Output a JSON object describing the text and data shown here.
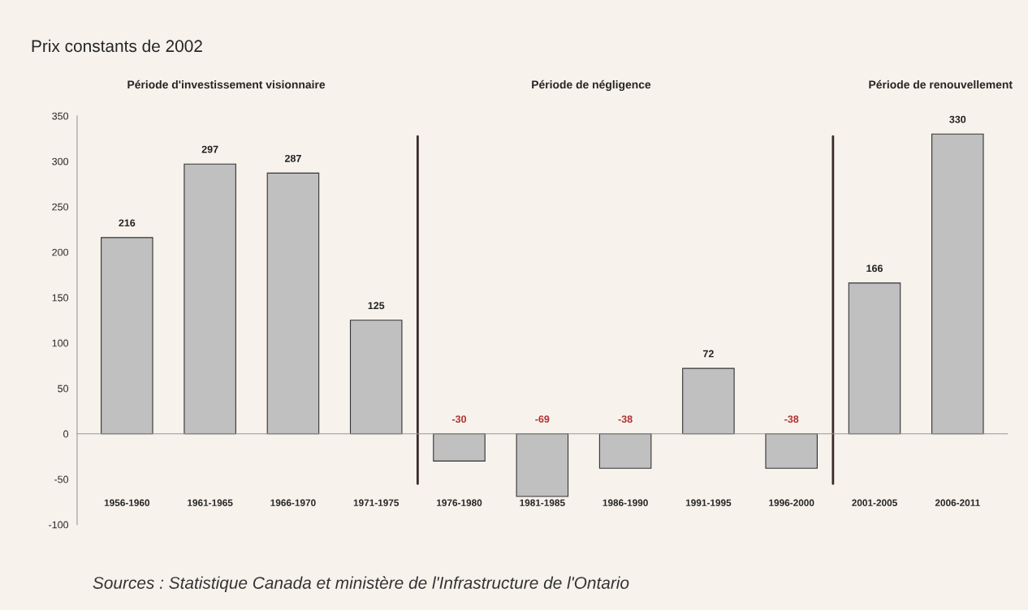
{
  "chart_data": {
    "type": "bar",
    "title": "Prix constants de 2002",
    "categories": [
      "1956-1960",
      "1961-1965",
      "1966-1970",
      "1971-1975",
      "1976-1980",
      "1981-1985",
      "1986-1990",
      "1991-1995",
      "1996-2000",
      "2001-2005",
      "2006-2011"
    ],
    "values": [
      216,
      297,
      287,
      125,
      -30,
      -69,
      -38,
      72,
      -38,
      166,
      330
    ],
    "color": "#c0c0c0",
    "data_labels": true,
    "ylim": [
      -100,
      350
    ],
    "yticks": [
      -100,
      -50,
      0,
      50,
      100,
      150,
      200,
      250,
      300,
      350
    ],
    "annotations": [
      "Période d'investissement visionnaire",
      "Période de négligence",
      "Période de renouvellement",
      "Sources : Statistique Canada et ministère de l'Infrastructure de l'Ontario"
    ],
    "grid": false
  }
}
